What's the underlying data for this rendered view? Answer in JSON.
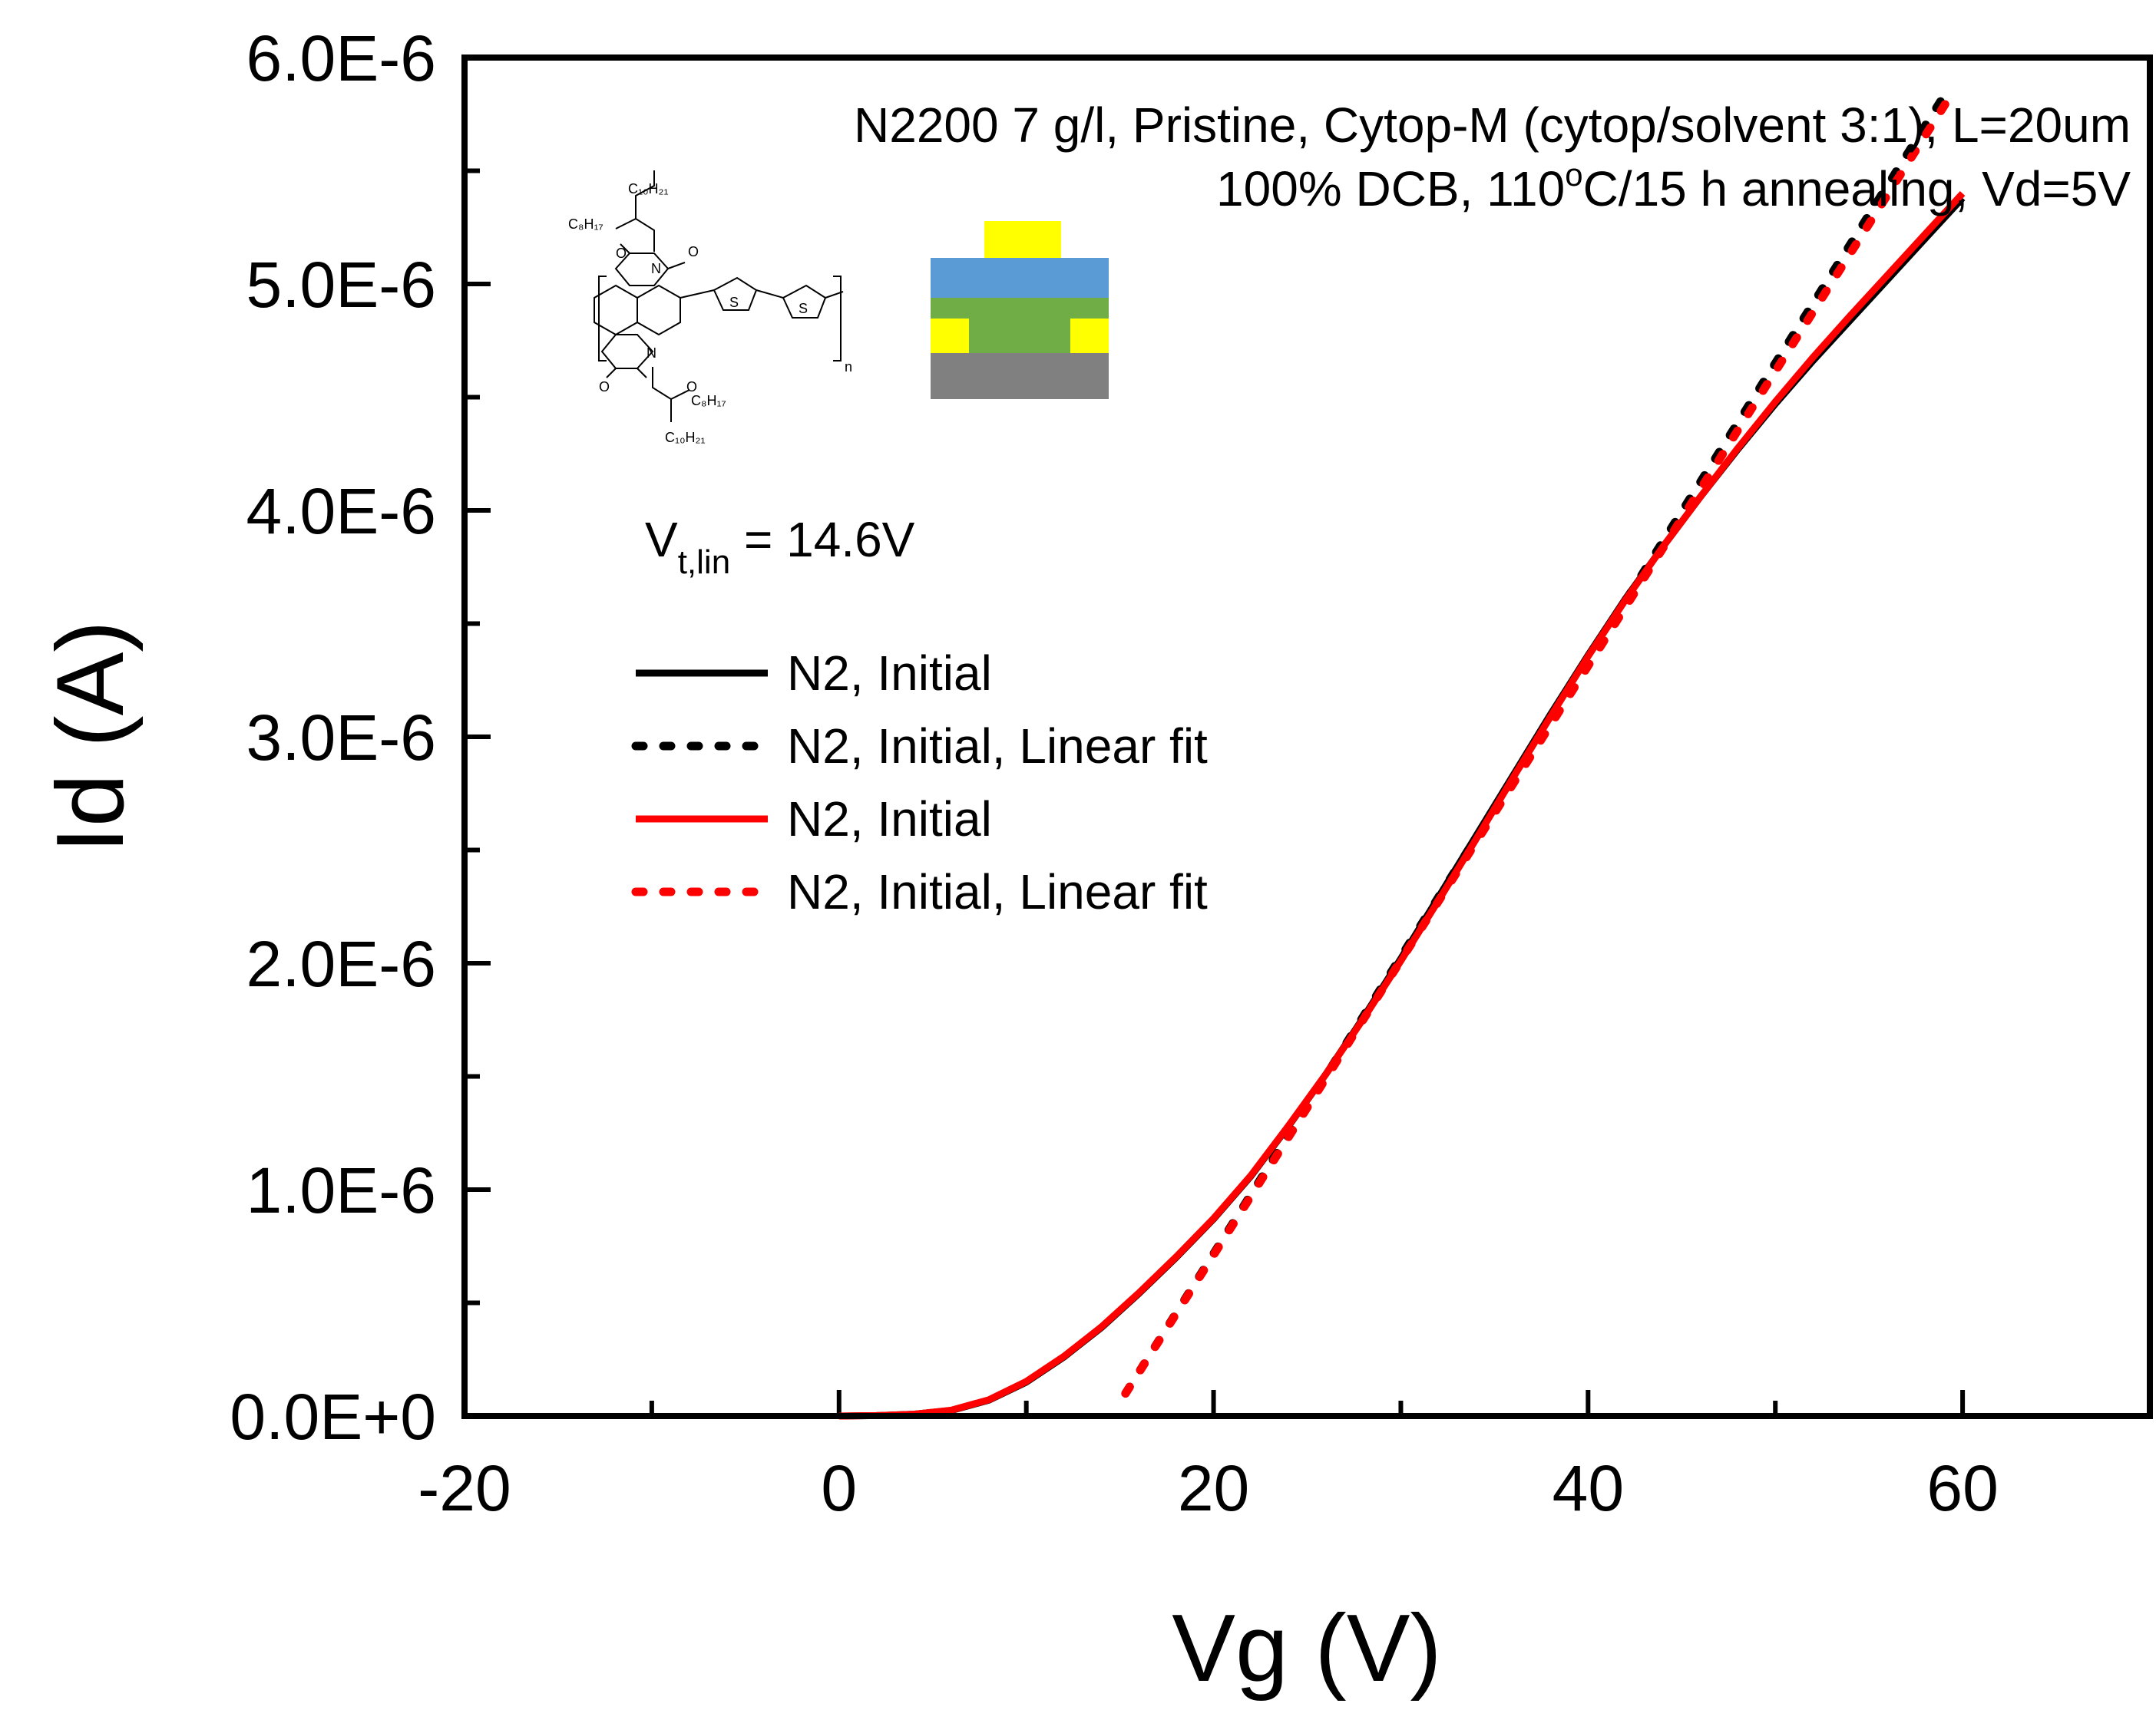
{
  "chart_data": {
    "type": "line",
    "xlabel": "Vg (V)",
    "ylabel": "Id (A)",
    "xlim": [
      -20,
      70
    ],
    "ylim": [
      0,
      6e-06
    ],
    "xticks": [
      -20,
      0,
      20,
      40,
      60
    ],
    "yticks": [
      0,
      1e-06,
      2e-06,
      3e-06,
      4e-06,
      5e-06,
      6e-06
    ],
    "xtick_labels": [
      "-20",
      "0",
      "20",
      "40",
      "60"
    ],
    "ytick_labels": [
      "0.0E+0",
      "1.0E-6",
      "2.0E-6",
      "3.0E-6",
      "4.0E-6",
      "5.0E-6",
      "6.0E-6"
    ],
    "annotations": {
      "line1": "N2200 7 g/l, Pristine, Cytop-M (cytop/solvent 3:1), L=20um",
      "line2_a": "100% DCB, 110",
      "line2_sup": "o",
      "line2_b": "C/15 h annealing, Vd=5V",
      "vt_main": "V",
      "vt_sub": "t,lin",
      "vt_rest": " = 14.6V"
    },
    "legend_position": "upper-left",
    "series": [
      {
        "name": "N2, Initial",
        "color": "#000000",
        "style": "solid",
        "x": [
          0,
          2,
          4,
          6,
          8,
          10,
          12,
          14,
          16,
          18,
          20,
          22,
          24,
          26,
          28,
          30,
          32,
          34,
          36,
          38,
          40,
          42,
          44,
          46,
          48,
          50,
          52,
          54,
          56,
          58,
          60
        ],
        "y": [
          0,
          2e-09,
          8e-09,
          2.5e-08,
          7e-08,
          1.5e-07,
          2.6e-07,
          3.9e-07,
          5.4e-07,
          7e-07,
          8.7e-07,
          1.06e-06,
          1.28e-06,
          1.51e-06,
          1.76e-06,
          2.02e-06,
          2.29e-06,
          2.56e-06,
          2.83e-06,
          3.1e-06,
          3.36e-06,
          3.61e-06,
          3.84e-06,
          4.06e-06,
          4.27e-06,
          4.47e-06,
          4.66e-06,
          4.84e-06,
          5.02e-06,
          5.2e-06,
          5.38e-06
        ]
      },
      {
        "name": "N2, Initial, Linear fit",
        "color": "#000000",
        "style": "dotted",
        "x": [
          15.3,
          59
        ],
        "y": [
          1e-07,
          5.83e-06
        ]
      },
      {
        "name": "N2, Initial",
        "color": "#ff0000",
        "style": "solid",
        "x": [
          0,
          2,
          4,
          6,
          8,
          10,
          12,
          14,
          16,
          18,
          20,
          22,
          24,
          26,
          28,
          30,
          32,
          34,
          36,
          38,
          40,
          42,
          44,
          46,
          48,
          50,
          52,
          54,
          56,
          58,
          60
        ],
        "y": [
          0,
          2e-09,
          8e-09,
          2.6e-08,
          7.2e-08,
          1.53e-07,
          2.63e-07,
          3.93e-07,
          5.43e-07,
          7.03e-07,
          8.73e-07,
          1.063e-06,
          1.282e-06,
          1.51e-06,
          1.755e-06,
          2.01e-06,
          2.275e-06,
          2.545e-06,
          2.82e-06,
          3.09e-06,
          3.355e-06,
          3.605e-06,
          3.84e-06,
          4.06e-06,
          4.275e-06,
          4.48e-06,
          4.675e-06,
          4.86e-06,
          5.04e-06,
          5.22e-06,
          5.4e-06
        ]
      },
      {
        "name": "N2, Initial, Linear fit",
        "color": "#ff0000",
        "style": "dotted",
        "x": [
          15.3,
          59.5
        ],
        "y": [
          1e-07,
          5.85e-06
        ]
      }
    ],
    "device_colors": {
      "gate": "#ffff00",
      "dielectric": "#5b9bd5",
      "semiconductor": "#70ad47",
      "electrodes": "#ffff00",
      "substrate": "#808080"
    }
  }
}
